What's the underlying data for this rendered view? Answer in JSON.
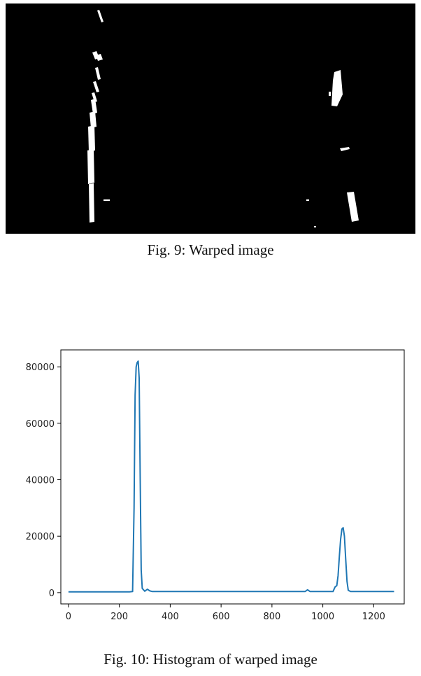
{
  "figures": [
    {
      "caption": "Fig. 9: Warped image"
    },
    {
      "caption": "Fig. 10: Histogram of warped image"
    }
  ],
  "chart_data": {
    "type": "line",
    "title": "",
    "xlabel": "",
    "ylabel": "",
    "xlim": [
      -30,
      1320
    ],
    "ylim": [
      -4000,
      86000
    ],
    "x_ticks": [
      "0",
      "200",
      "400",
      "600",
      "800",
      "1000",
      "1200"
    ],
    "y_ticks": [
      "0",
      "20000",
      "40000",
      "60000",
      "80000"
    ],
    "grid": false,
    "series": [
      {
        "color": "#1f77b4",
        "x": [
          0,
          240,
          252,
          258,
          262,
          266,
          270,
          274,
          278,
          282,
          286,
          290,
          300,
          310,
          320,
          330,
          600,
          930,
          940,
          950,
          1040,
          1048,
          1055,
          1060,
          1065,
          1070,
          1075,
          1080,
          1085,
          1090,
          1095,
          1100,
          1110,
          1280
        ],
        "y": [
          300,
          300,
          400,
          30000,
          70000,
          80000,
          81500,
          82000,
          76000,
          40000,
          8000,
          1500,
          500,
          1200,
          600,
          400,
          400,
          400,
          1000,
          400,
          400,
          2000,
          2500,
          6000,
          13000,
          19000,
          22500,
          23000,
          20000,
          12000,
          4000,
          800,
          400,
          400
        ]
      }
    ]
  }
}
